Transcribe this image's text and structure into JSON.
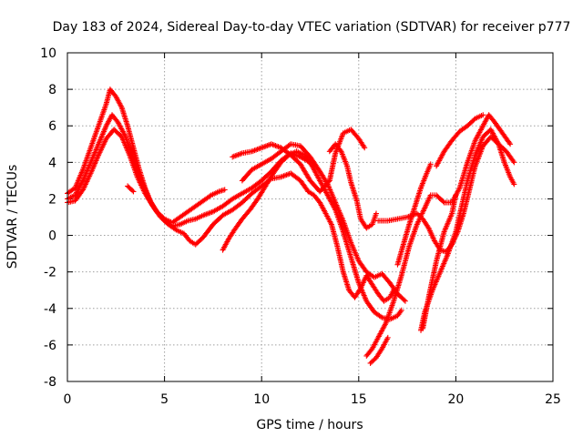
{
  "chart_data": {
    "type": "scatter",
    "title": "Day 183 of 2024, Sidereal Day-to-day VTEC variation (SDTVAR) for receiver p777",
    "xlabel": "GPS time / hours",
    "ylabel": "SDTVAR / TECUs",
    "xlim": [
      0,
      25
    ],
    "ylim": [
      -8,
      10
    ],
    "xticks": [
      "0",
      "5",
      "10",
      "15",
      "20",
      "25"
    ],
    "yticks": [
      "-8",
      "-6",
      "-4",
      "-2",
      "0",
      "2",
      "4",
      "6",
      "8",
      "10"
    ],
    "grid": true,
    "marker": "plus",
    "color": "#ff0000",
    "series": [
      {
        "points": [
          [
            0.0,
            2.3
          ],
          [
            0.4,
            2.6
          ],
          [
            0.8,
            3.6
          ],
          [
            1.2,
            4.8
          ],
          [
            1.6,
            6.0
          ],
          [
            2.0,
            7.2
          ],
          [
            2.2,
            8.0
          ],
          [
            2.5,
            7.6
          ],
          [
            2.8,
            7.0
          ],
          [
            3.1,
            6.0
          ],
          [
            3.4,
            4.8
          ],
          [
            3.7,
            3.6
          ],
          [
            4.0,
            2.6
          ],
          [
            4.3,
            1.8
          ],
          [
            4.6,
            1.3
          ],
          [
            5.0,
            0.9
          ],
          [
            5.4,
            0.7
          ],
          [
            5.8,
            1.0
          ],
          [
            6.2,
            1.3
          ],
          [
            6.6,
            1.6
          ],
          [
            7.0,
            1.9
          ],
          [
            7.4,
            2.2
          ],
          [
            7.8,
            2.4
          ],
          [
            8.1,
            2.5
          ]
        ]
      },
      {
        "points": [
          [
            0.0,
            2.0
          ],
          [
            0.4,
            2.2
          ],
          [
            0.8,
            3.0
          ],
          [
            1.2,
            4.0
          ],
          [
            1.6,
            5.0
          ],
          [
            2.0,
            6.0
          ],
          [
            2.3,
            6.6
          ],
          [
            2.6,
            6.2
          ],
          [
            3.0,
            5.4
          ],
          [
            3.4,
            4.2
          ],
          [
            3.8,
            3.0
          ],
          [
            4.2,
            2.0
          ],
          [
            4.6,
            1.3
          ],
          [
            5.0,
            0.8
          ],
          [
            5.4,
            0.5
          ],
          [
            5.8,
            0.6
          ],
          [
            6.2,
            0.8
          ],
          [
            6.6,
            0.9
          ],
          [
            7.0,
            1.1
          ],
          [
            7.5,
            1.3
          ],
          [
            8.0,
            1.6
          ],
          [
            8.5,
            2.0
          ],
          [
            9.0,
            2.3
          ],
          [
            9.5,
            2.6
          ],
          [
            10.0,
            3.0
          ],
          [
            10.5,
            3.5
          ],
          [
            11.0,
            4.1
          ],
          [
            11.5,
            4.5
          ],
          [
            12.0,
            4.3
          ],
          [
            12.5,
            4.0
          ]
        ]
      },
      {
        "points": [
          [
            0.0,
            1.8
          ],
          [
            0.4,
            1.9
          ],
          [
            0.8,
            2.5
          ],
          [
            1.2,
            3.4
          ],
          [
            1.6,
            4.4
          ],
          [
            2.0,
            5.3
          ],
          [
            2.4,
            5.8
          ],
          [
            2.8,
            5.4
          ],
          [
            3.2,
            4.4
          ],
          [
            3.6,
            3.2
          ],
          [
            4.0,
            2.3
          ],
          [
            4.4,
            1.6
          ],
          [
            4.8,
            1.0
          ],
          [
            5.2,
            0.6
          ],
          [
            5.6,
            0.3
          ],
          [
            6.0,
            0.1
          ],
          [
            6.3,
            -0.3
          ],
          [
            6.6,
            -0.5
          ],
          [
            7.0,
            -0.1
          ],
          [
            7.5,
            0.6
          ],
          [
            8.0,
            1.1
          ],
          [
            8.5,
            1.4
          ],
          [
            9.0,
            1.8
          ],
          [
            9.5,
            2.3
          ],
          [
            10.0,
            2.7
          ],
          [
            10.5,
            3.1
          ],
          [
            11.0,
            3.2
          ],
          [
            11.5,
            3.4
          ],
          [
            12.0,
            3.0
          ],
          [
            12.4,
            2.4
          ]
        ]
      },
      {
        "points": [
          [
            3.1,
            2.7
          ],
          [
            3.4,
            2.4
          ]
        ]
      },
      {
        "points": [
          [
            8.0,
            -0.8
          ],
          [
            8.3,
            -0.2
          ],
          [
            8.6,
            0.3
          ],
          [
            9.0,
            0.9
          ],
          [
            9.4,
            1.4
          ],
          [
            9.8,
            2.0
          ],
          [
            10.2,
            2.7
          ],
          [
            10.6,
            3.4
          ],
          [
            11.0,
            4.0
          ],
          [
            11.4,
            4.4
          ],
          [
            11.8,
            4.6
          ],
          [
            12.2,
            4.4
          ],
          [
            12.6,
            3.8
          ],
          [
            13.0,
            3.0
          ],
          [
            13.4,
            2.2
          ],
          [
            13.8,
            1.4
          ],
          [
            14.2,
            0.2
          ],
          [
            14.6,
            -1.2
          ],
          [
            15.0,
            -2.6
          ],
          [
            15.4,
            -3.6
          ],
          [
            15.8,
            -4.2
          ],
          [
            16.2,
            -4.5
          ],
          [
            16.6,
            -4.6
          ],
          [
            17.0,
            -4.4
          ],
          [
            17.2,
            -4.1
          ]
        ]
      },
      {
        "points": [
          [
            9.0,
            3.0
          ],
          [
            9.5,
            3.6
          ],
          [
            10.0,
            3.9
          ],
          [
            10.5,
            4.2
          ],
          [
            11.0,
            4.6
          ],
          [
            11.5,
            5.0
          ],
          [
            12.0,
            4.9
          ],
          [
            12.5,
            4.3
          ],
          [
            13.0,
            3.5
          ],
          [
            13.4,
            2.8
          ],
          [
            13.8,
            1.8
          ],
          [
            14.2,
            0.8
          ],
          [
            14.6,
            -0.4
          ],
          [
            15.0,
            -1.4
          ],
          [
            15.4,
            -2.0
          ],
          [
            15.8,
            -2.3
          ],
          [
            16.2,
            -2.1
          ],
          [
            16.6,
            -2.6
          ],
          [
            17.0,
            -3.2
          ],
          [
            17.4,
            -3.6
          ]
        ]
      },
      {
        "points": [
          [
            8.5,
            4.3
          ],
          [
            9.0,
            4.5
          ],
          [
            9.5,
            4.6
          ],
          [
            10.0,
            4.8
          ],
          [
            10.5,
            5.0
          ],
          [
            11.0,
            4.8
          ],
          [
            11.5,
            4.4
          ],
          [
            12.0,
            3.9
          ],
          [
            12.5,
            3.0
          ],
          [
            13.0,
            2.4
          ],
          [
            13.5,
            3.0
          ],
          [
            13.8,
            4.5
          ],
          [
            14.2,
            5.6
          ],
          [
            14.6,
            5.8
          ],
          [
            15.0,
            5.3
          ],
          [
            15.3,
            4.8
          ]
        ]
      },
      {
        "points": [
          [
            12.4,
            2.4
          ],
          [
            12.7,
            2.2
          ],
          [
            13.0,
            1.8
          ],
          [
            13.3,
            1.2
          ],
          [
            13.6,
            0.6
          ],
          [
            13.9,
            -0.6
          ],
          [
            14.2,
            -2.0
          ],
          [
            14.5,
            -3.0
          ],
          [
            14.8,
            -3.4
          ],
          [
            15.1,
            -2.9
          ],
          [
            15.4,
            -2.2
          ],
          [
            15.7,
            -2.7
          ],
          [
            16.0,
            -3.2
          ],
          [
            16.3,
            -3.6
          ],
          [
            16.6,
            -3.4
          ],
          [
            16.8,
            -3.0
          ]
        ]
      },
      {
        "points": [
          [
            13.5,
            4.6
          ],
          [
            13.8,
            5.0
          ],
          [
            14.1,
            4.6
          ],
          [
            14.4,
            3.8
          ],
          [
            14.6,
            2.9
          ],
          [
            14.9,
            1.9
          ],
          [
            15.1,
            0.9
          ],
          [
            15.4,
            0.4
          ],
          [
            15.7,
            0.6
          ],
          [
            15.9,
            1.2
          ]
        ]
      },
      {
        "points": [
          [
            15.4,
            -6.6
          ],
          [
            15.7,
            -6.2
          ],
          [
            16.0,
            -5.6
          ],
          [
            16.4,
            -4.8
          ],
          [
            16.8,
            -3.6
          ],
          [
            17.2,
            -2.2
          ],
          [
            17.6,
            -0.6
          ],
          [
            18.0,
            0.6
          ],
          [
            18.4,
            1.5
          ],
          [
            18.7,
            2.2
          ],
          [
            19.0,
            2.2
          ],
          [
            19.4,
            1.8
          ],
          [
            19.8,
            1.8
          ],
          [
            20.2,
            2.6
          ],
          [
            20.6,
            4.0
          ],
          [
            21.0,
            5.2
          ],
          [
            21.4,
            6.0
          ],
          [
            21.7,
            6.6
          ],
          [
            22.0,
            6.2
          ],
          [
            22.4,
            5.6
          ],
          [
            22.8,
            5.0
          ]
        ]
      },
      {
        "points": [
          [
            15.6,
            -7.0
          ],
          [
            15.9,
            -6.7
          ],
          [
            16.2,
            -6.2
          ],
          [
            16.5,
            -5.6
          ]
        ]
      },
      {
        "points": [
          [
            16.0,
            0.8
          ],
          [
            16.5,
            0.8
          ],
          [
            17.0,
            0.9
          ],
          [
            17.5,
            1.0
          ],
          [
            18.0,
            1.2
          ],
          [
            18.3,
            0.9
          ],
          [
            18.6,
            0.4
          ],
          [
            18.9,
            -0.3
          ],
          [
            19.2,
            -0.8
          ],
          [
            19.5,
            -0.9
          ],
          [
            19.8,
            -0.5
          ],
          [
            20.1,
            0.2
          ],
          [
            20.4,
            1.2
          ],
          [
            20.7,
            2.5
          ],
          [
            21.0,
            3.8
          ],
          [
            21.4,
            4.9
          ],
          [
            21.8,
            5.4
          ],
          [
            22.2,
            5.0
          ],
          [
            22.6,
            4.6
          ],
          [
            23.0,
            4.0
          ]
        ]
      },
      {
        "points": [
          [
            18.2,
            -5.2
          ],
          [
            18.4,
            -4.2
          ],
          [
            18.8,
            -3.0
          ],
          [
            19.2,
            -2.0
          ],
          [
            19.6,
            -1.0
          ],
          [
            20.0,
            0.2
          ],
          [
            20.3,
            1.6
          ],
          [
            20.6,
            3.0
          ],
          [
            21.0,
            4.4
          ],
          [
            21.4,
            5.4
          ],
          [
            21.8,
            5.8
          ],
          [
            22.2,
            5.0
          ],
          [
            22.5,
            4.0
          ],
          [
            22.8,
            3.2
          ],
          [
            23.0,
            2.8
          ]
        ]
      },
      {
        "points": [
          [
            17.0,
            -1.6
          ],
          [
            17.3,
            -0.5
          ],
          [
            17.6,
            0.6
          ],
          [
            17.9,
            1.6
          ],
          [
            18.2,
            2.6
          ],
          [
            18.5,
            3.4
          ],
          [
            18.7,
            3.9
          ]
        ]
      },
      {
        "points": [
          [
            18.3,
            -5.1
          ],
          [
            18.6,
            -3.4
          ],
          [
            19.0,
            -1.4
          ],
          [
            19.4,
            0.2
          ],
          [
            19.8,
            1.2
          ],
          [
            20.0,
            2.2
          ]
        ]
      },
      {
        "points": [
          [
            19.0,
            3.8
          ],
          [
            19.4,
            4.6
          ],
          [
            19.8,
            5.2
          ],
          [
            20.2,
            5.7
          ],
          [
            20.6,
            6.0
          ],
          [
            21.0,
            6.4
          ],
          [
            21.4,
            6.6
          ]
        ]
      }
    ]
  }
}
